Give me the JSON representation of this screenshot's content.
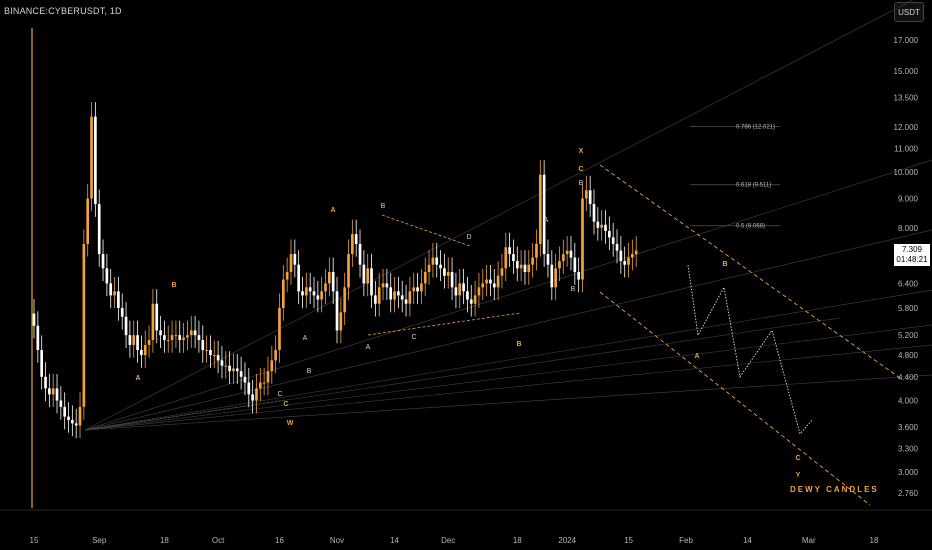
{
  "header": {
    "symbol": "BINANCE:CYBERUSDT, 1D",
    "currency_button": "USDT"
  },
  "last_price": {
    "value": "7.309",
    "countdown": "01:48:21"
  },
  "signature": "DEWY CANDLES",
  "colors": {
    "background": "#000000",
    "up": "#f0a23b",
    "down": "#ffffff",
    "fib": "#555555",
    "channel": "#f0a23b"
  },
  "chart_data": {
    "type": "candlestick",
    "scale": "log",
    "y_ticks": [
      "17.000",
      "15.000",
      "13.500",
      "12.000",
      "11.000",
      "10.000",
      "9.000",
      "8.000",
      "7.000",
      "6.400",
      "5.800",
      "5.200",
      "4.800",
      "4.400",
      "4.000",
      "3.600",
      "3.300",
      "3.000",
      "2.760"
    ],
    "y_tick_values": [
      17,
      15,
      13.5,
      12,
      11,
      10,
      9,
      8,
      7,
      6.4,
      5.8,
      5.2,
      4.8,
      4.4,
      4,
      3.6,
      3.3,
      3,
      2.76
    ],
    "x_ticks": [
      "15",
      "Sep",
      "18",
      "Oct",
      "16",
      "Nov",
      "14",
      "Dec",
      "18",
      "2024",
      "15",
      "Feb",
      "14",
      "Mar",
      "18"
    ],
    "x_tick_days": [
      0,
      17,
      34,
      48,
      64,
      79,
      94,
      108,
      126,
      139,
      155,
      170,
      186,
      202,
      219
    ],
    "candle_spacing_days": 1,
    "closes": [
      5.4,
      4.9,
      4.4,
      4.2,
      4.1,
      4.2,
      4.0,
      3.9,
      3.75,
      3.7,
      3.65,
      3.62,
      3.9,
      7.5,
      9.0,
      12.5,
      8.8,
      7.2,
      6.8,
      6.4,
      6.1,
      6.2,
      5.8,
      5.6,
      5.2,
      5.0,
      5.2,
      4.9,
      4.8,
      5.0,
      5.1,
      5.9,
      5.3,
      5.2,
      5.1,
      5.1,
      5.2,
      5.2,
      5.1,
      5.15,
      5.2,
      5.3,
      5.2,
      5.1,
      4.9,
      4.9,
      4.8,
      4.8,
      4.7,
      4.6,
      4.6,
      4.5,
      4.55,
      4.5,
      4.4,
      4.3,
      4.1,
      4.0,
      4.2,
      4.3,
      4.3,
      4.5,
      4.7,
      4.9,
      5.8,
      6.5,
      6.7,
      7.2,
      6.9,
      6.2,
      6.1,
      6.3,
      6.2,
      6.1,
      6.0,
      6.2,
      6.4,
      6.7,
      6.2,
      5.3,
      5.7,
      6.3,
      7.2,
      7.8,
      7.5,
      6.9,
      6.4,
      6.8,
      6.1,
      5.9,
      6.3,
      6.4,
      6.3,
      6.0,
      6.2,
      6.1,
      6.0,
      5.9,
      6.2,
      6.3,
      6.2,
      6.4,
      6.7,
      6.9,
      7.1,
      6.9,
      6.8,
      6.6,
      6.7,
      6.3,
      6.1,
      6.4,
      6.2,
      6.0,
      5.9,
      6.1,
      6.3,
      6.4,
      6.5,
      6.4,
      6.3,
      6.6,
      6.8,
      7.4,
      7.2,
      7.0,
      6.8,
      6.9,
      6.7,
      6.9,
      7.1,
      7.5,
      9.9,
      7.2,
      6.9,
      6.3,
      6.8,
      7.0,
      7.2,
      7.3,
      7.1,
      6.7,
      6.5,
      9.0,
      9.3,
      8.8,
      8.2,
      8.0,
      8.1,
      7.9,
      7.7,
      7.5,
      7.3,
      7.0,
      6.9,
      7.1,
      7.2,
      7.3
    ],
    "projection": {
      "wave_labels": [
        "B",
        "A",
        "C",
        "Y"
      ],
      "targets": [
        6.3,
        5.2,
        4.4,
        5.3,
        3.5
      ]
    },
    "fib_levels": [
      {
        "label": "0.786 (12.021)",
        "value": 12.021
      },
      {
        "label": "0.618 (9.511)",
        "value": 9.511
      },
      {
        "label": "0.5 (8.068)",
        "value": 8.068
      }
    ],
    "orange_wave_labels": [
      "A",
      "B",
      "A",
      "C",
      "W",
      "X",
      "C",
      "B",
      "A",
      "B",
      "C",
      "Y"
    ],
    "white_wave_labels": [
      "B",
      "A",
      "C",
      "D",
      "A",
      "B",
      "B",
      "C",
      "A",
      "B"
    ]
  }
}
